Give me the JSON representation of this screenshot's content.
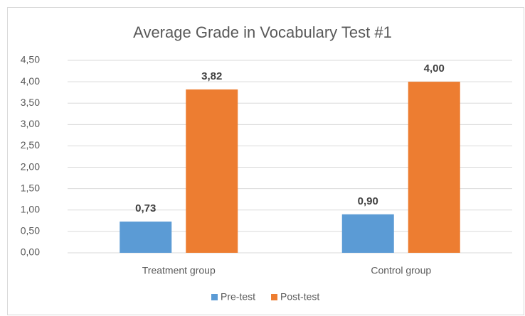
{
  "chart_data": {
    "type": "bar",
    "title": "Average Grade in Vocabulary Test #1",
    "categories": [
      "Treatment group",
      "Control group"
    ],
    "series": [
      {
        "name": "Pre-test",
        "color": "#5b9bd5",
        "values": [
          0.73,
          0.9
        ],
        "value_labels": [
          "0,73",
          "0,90"
        ]
      },
      {
        "name": "Post-test",
        "color": "#ed7d31",
        "values": [
          3.82,
          4.0
        ],
        "value_labels": [
          "3,82",
          "4,00"
        ]
      }
    ],
    "ylim": [
      0,
      4.5
    ],
    "yticks": [
      {
        "value": 0,
        "label": "0,00"
      },
      {
        "value": 0.5,
        "label": "0,50"
      },
      {
        "value": 1,
        "label": "1,00"
      },
      {
        "value": 1.5,
        "label": "1,50"
      },
      {
        "value": 2,
        "label": "2,00"
      },
      {
        "value": 2.5,
        "label": "2,50"
      },
      {
        "value": 3,
        "label": "3,00"
      },
      {
        "value": 3.5,
        "label": "3,50"
      },
      {
        "value": 4,
        "label": "4,00"
      },
      {
        "value": 4.5,
        "label": "4,50"
      }
    ],
    "grid": true,
    "legend": "bottom"
  }
}
